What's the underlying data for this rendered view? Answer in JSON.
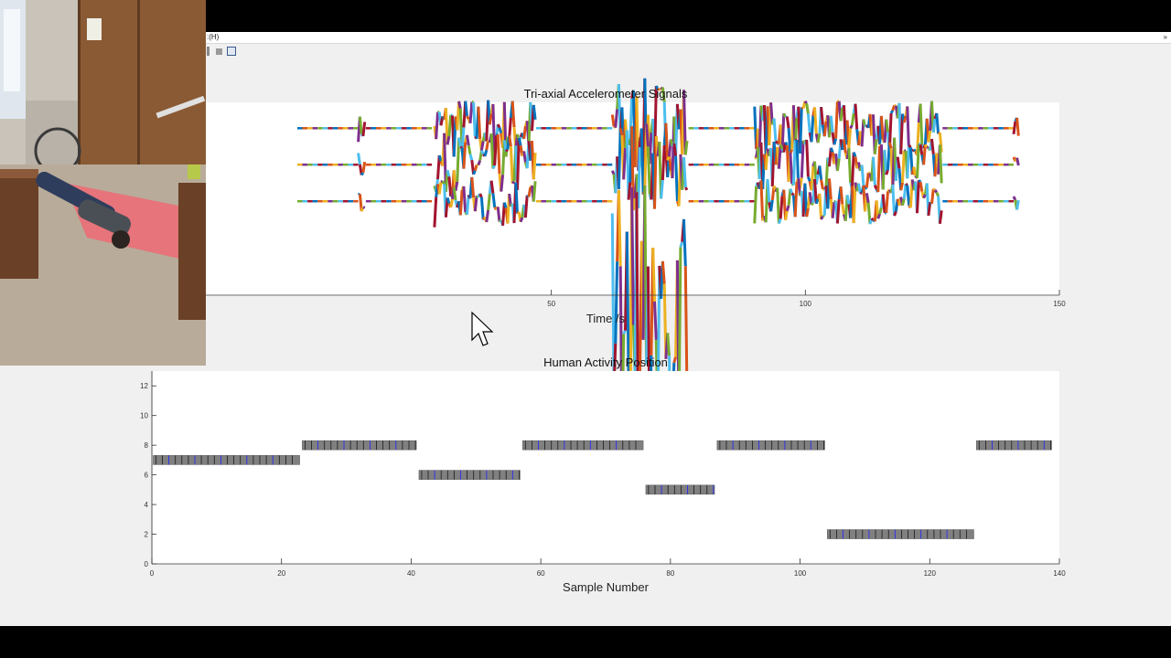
{
  "window": {
    "menu_fragment": ":(H)",
    "menu_expander": "»"
  },
  "icons": {
    "toolbar": [
      "zoom-icon",
      "pan-icon",
      "figure-icon"
    ],
    "cursor": "mouse-cursor-icon"
  },
  "colors": {
    "series": [
      "#0072BD",
      "#D95319",
      "#EDB120",
      "#7E2F8E",
      "#77AC30",
      "#4DBEEE",
      "#A2142F"
    ],
    "marker_fill": "#808080",
    "marker_ticks": [
      "#1a1a1a",
      "#2020ff"
    ]
  },
  "chart_data": [
    {
      "type": "line",
      "title": "Tri-axial Accelerometer Signals",
      "xlabel": "Time /s",
      "ylabel": "",
      "xlim": [
        0,
        150
      ],
      "x_ticks_visible": [
        50,
        100,
        150
      ],
      "y_axis_visible": false,
      "grid": false,
      "series": [
        {
          "channel": "x",
          "baseline": 0.9,
          "segments": [
            {
              "x": [
                0,
                12
              ],
              "amp": 0.02
            },
            {
              "x": [
                12,
                13.5
              ],
              "amp": 0.15
            },
            {
              "x": [
                13.5,
                27
              ],
              "amp": 0.02
            },
            {
              "x": [
                27,
                47
              ],
              "amp": 0.35
            },
            {
              "x": [
                47,
                62
              ],
              "amp": 0.02
            },
            {
              "x": [
                62,
                77
              ],
              "amp": 0.55
            },
            {
              "x": [
                77,
                90
              ],
              "amp": 0.02
            },
            {
              "x": [
                90,
                127
              ],
              "amp": 0.3
            },
            {
              "x": [
                127,
                141
              ],
              "amp": 0.02
            },
            {
              "x": [
                141,
                142
              ],
              "amp": 0.12
            }
          ]
        },
        {
          "channel": "y",
          "baseline": 0.7,
          "segments": [
            {
              "x": [
                0,
                12
              ],
              "amp": 0.02
            },
            {
              "x": [
                12,
                13.5
              ],
              "amp": 0.15
            },
            {
              "x": [
                13.5,
                27
              ],
              "amp": 0.02
            },
            {
              "x": [
                27,
                47
              ],
              "amp": 0.35
            },
            {
              "x": [
                47,
                62
              ],
              "amp": 0.02
            },
            {
              "x": [
                62,
                77
              ],
              "amp": 0.5
            },
            {
              "x": [
                77,
                90
              ],
              "amp": 0.02
            },
            {
              "x": [
                90,
                127
              ],
              "amp": 0.3
            },
            {
              "x": [
                127,
                141
              ],
              "amp": 0.02
            },
            {
              "x": [
                141,
                142
              ],
              "amp": 0.12
            }
          ]
        },
        {
          "channel": "z",
          "baseline": 0.5,
          "segments": [
            {
              "x": [
                0,
                12
              ],
              "amp": 0.02
            },
            {
              "x": [
                12,
                13.5
              ],
              "amp": 0.12
            },
            {
              "x": [
                13.5,
                27
              ],
              "amp": 0.02
            },
            {
              "x": [
                27,
                47
              ],
              "amp": 0.3
            },
            {
              "x": [
                47,
                62
              ],
              "amp": 0.02
            },
            {
              "x": [
                62,
                77
              ],
              "amp": 1.55
            },
            {
              "x": [
                77,
                90
              ],
              "amp": 0.02
            },
            {
              "x": [
                90,
                127
              ],
              "amp": 0.25
            },
            {
              "x": [
                127,
                141
              ],
              "amp": 0.02
            },
            {
              "x": [
                141,
                142
              ],
              "amp": 0.1
            }
          ]
        }
      ]
    },
    {
      "type": "scatter",
      "title": "Human Activity Position",
      "xlabel": "Sample Number",
      "ylabel": "",
      "xlim": [
        0,
        140
      ],
      "ylim": [
        0,
        13
      ],
      "x_ticks": [
        0,
        20,
        40,
        60,
        80,
        100,
        120,
        140
      ],
      "y_ticks": [
        0,
        2,
        4,
        6,
        8,
        10,
        12
      ],
      "grid": false,
      "levels": [
        {
          "x_start": 0,
          "x_end": 23,
          "y": 7
        },
        {
          "x_start": 23,
          "x_end": 41,
          "y": 8
        },
        {
          "x_start": 41,
          "x_end": 57,
          "y": 6
        },
        {
          "x_start": 57,
          "x_end": 76,
          "y": 8
        },
        {
          "x_start": 76,
          "x_end": 87,
          "y": 5
        },
        {
          "x_start": 87,
          "x_end": 104,
          "y": 8
        },
        {
          "x_start": 104,
          "x_end": 127,
          "y": 2
        },
        {
          "x_start": 127,
          "x_end": 139,
          "y": 8
        }
      ]
    }
  ]
}
